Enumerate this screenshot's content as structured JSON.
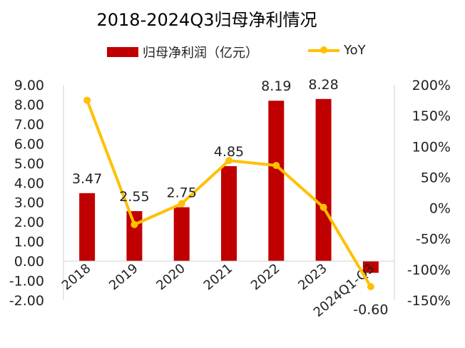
{
  "chart_data": {
    "type": "bar",
    "title": "2018-2024Q3归母净利情况",
    "categories": [
      "2018",
      "2019",
      "2020",
      "2021",
      "2022",
      "2023",
      "2024Q1-Q3"
    ],
    "series": [
      {
        "name": "归母净利润（亿元）",
        "type": "bar",
        "axis": "left",
        "values": [
          3.47,
          2.55,
          2.75,
          4.85,
          8.19,
          8.28,
          -0.6
        ],
        "labels": [
          "3.47",
          "2.55",
          "2.75",
          "4.85",
          "8.19",
          "8.28",
          "-0.60"
        ],
        "color": "#C00000"
      },
      {
        "name": "YoY",
        "type": "line",
        "axis": "right",
        "values": [
          175,
          -27,
          7,
          77,
          69,
          1,
          -128
        ],
        "color": "#FFC000"
      }
    ],
    "y_left": {
      "min": -2,
      "max": 9,
      "step": 1,
      "ticks": [
        "-2.00",
        "-1.00",
        "0.00",
        "1.00",
        "2.00",
        "3.00",
        "4.00",
        "5.00",
        "6.00",
        "7.00",
        "8.00",
        "9.00"
      ]
    },
    "y_right": {
      "min": -150,
      "max": 200,
      "step": 50,
      "ticks": [
        "-150%",
        "-100%",
        "-50%",
        "0%",
        "50%",
        "100%",
        "150%",
        "200%"
      ]
    },
    "grid": false,
    "legend": "top"
  }
}
